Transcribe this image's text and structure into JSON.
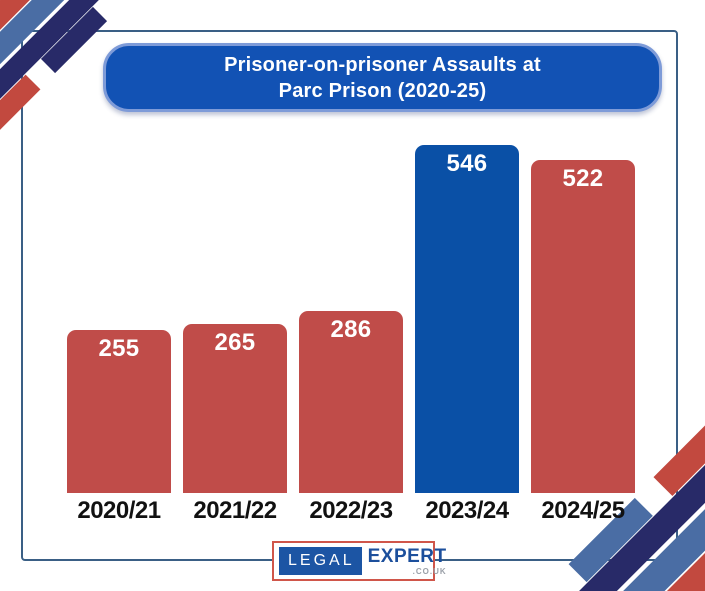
{
  "header": {
    "title_line1": "Prisoner-on-prisoner Assaults at",
    "title_line2": "Parc Prison (2020-25)"
  },
  "chart_data": {
    "type": "bar",
    "title": "Prisoner-on-prisoner Assaults at Parc Prison (2020-25)",
    "categories": [
      "2020/21",
      "2021/22",
      "2022/23",
      "2023/24",
      "2024/25"
    ],
    "values": [
      255,
      265,
      286,
      546,
      522
    ],
    "xlabel": "",
    "ylabel": "",
    "ylim": [
      0,
      560
    ],
    "grid": false,
    "legend": false,
    "data_labels_shown": true,
    "bar_colors": [
      "#c04c49",
      "#c04c49",
      "#c04c49",
      "#0a50a6",
      "#c04c49"
    ],
    "highlight_index": 3
  },
  "footer_logo": {
    "word1": "LEGAL",
    "word2": "EXPERT",
    "suffix": ".CO.UK"
  },
  "colors": {
    "bar_red": "#c04c49",
    "bar_blue": "#0a50a6",
    "title_pill_fill": "#1252b4",
    "title_pill_border": "#7e9bd8",
    "title_text": "#ffffff",
    "value_label_text": "#ffffff",
    "axis_label_text": "#111111",
    "frame_line": "#3a5f85",
    "stripe_red": "#c2493f",
    "stripe_steel_blue": "#4a6da4",
    "stripe_navy": "#282a68",
    "logo_border_red": "#d0564a",
    "logo_blue": "#1c55a4",
    "logo_suffix_gray": "#9aa0a8"
  }
}
